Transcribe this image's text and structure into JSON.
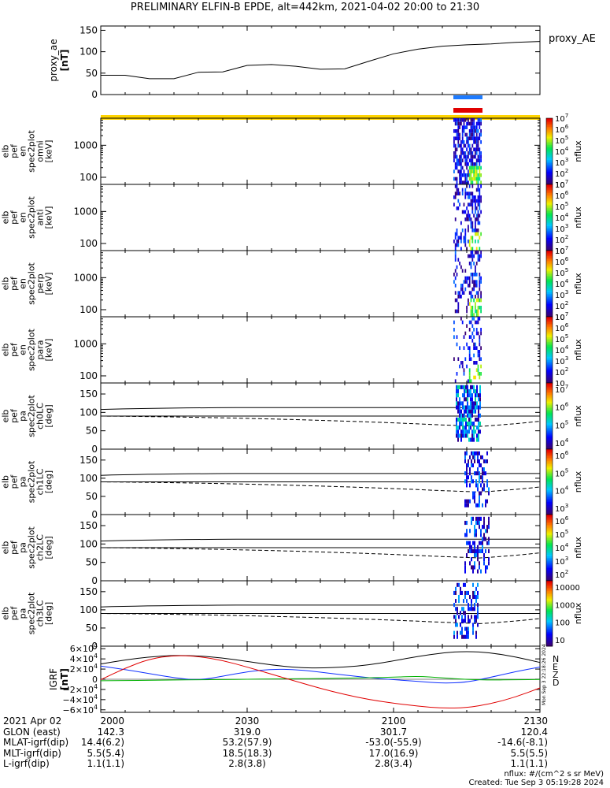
{
  "title": "PRELIMINARY ELFIN-B EPDE, alt=442km, 2021-04-02 20:00 to 21:30",
  "colors": {
    "ae_line": "#000000",
    "bar_blue": "#1e7bff",
    "bar_red": "#e00000",
    "bar_yellow": "#ffd400",
    "mag_n": "#000000",
    "mag_e": "#1030ff",
    "mag_z": "#00b000",
    "mag_d": "#e00000"
  },
  "chart_data": [
    {
      "type": "line",
      "name": "proxy_ae",
      "legend": "proxy_AE",
      "ylabel": "proxy_ae [nT]",
      "ylim": [
        0,
        160
      ],
      "yticks": [
        "0",
        "50",
        "100",
        "150"
      ],
      "x": [
        0,
        5,
        10,
        15,
        20,
        25,
        30,
        35,
        40,
        45,
        50,
        55,
        60,
        65,
        70,
        75,
        80,
        85,
        90
      ],
      "y": [
        45,
        45,
        37,
        37,
        52,
        53,
        68,
        70,
        66,
        59,
        60,
        78,
        95,
        106,
        113,
        116,
        118,
        122,
        124
      ]
    },
    {
      "type": "heatmap",
      "name": "omni",
      "ylabel": "elb pef en spec2plot omni [keV]",
      "yscale": "log",
      "ylim": [
        60,
        7000
      ],
      "yticks": [
        "100",
        "1000"
      ],
      "cblabel": "nflux",
      "cbticks": [
        "10",
        "10^2",
        "10^3",
        "10^4",
        "10^5",
        "10^6",
        "10^7"
      ]
    },
    {
      "type": "heatmap",
      "name": "anti",
      "ylabel": "elb pef en spec2plot anti [keV]",
      "yscale": "log",
      "ylim": [
        60,
        7000
      ],
      "yticks": [
        "100",
        "1000"
      ],
      "cblabel": "nflux",
      "cbticks": [
        "10",
        "10^2",
        "10^3",
        "10^4",
        "10^5",
        "10^6",
        "10^7"
      ]
    },
    {
      "type": "heatmap",
      "name": "perp",
      "ylabel": "elb pef en spec2plot perp [keV]",
      "yscale": "log",
      "ylim": [
        60,
        7000
      ],
      "yticks": [
        "100",
        "1000"
      ],
      "cblabel": "nflux",
      "cbticks": [
        "10",
        "10^2",
        "10^3",
        "10^4",
        "10^5",
        "10^6",
        "10^7"
      ]
    },
    {
      "type": "heatmap",
      "name": "para",
      "ylabel": "elb pef en spec2plot para [keV]",
      "yscale": "log",
      "ylim": [
        60,
        7000
      ],
      "yticks": [
        "100",
        "1000"
      ],
      "cblabel": "nflux",
      "cbticks": [
        "10",
        "10^2",
        "10^3",
        "10^4",
        "10^5",
        "10^6",
        "10^7"
      ]
    },
    {
      "type": "heatmap",
      "name": "ch0LC",
      "ylabel": "elb pef pa spec2plot ch0LC [deg]",
      "ylim": [
        0,
        180
      ],
      "yticks": [
        "0",
        "50",
        "100",
        "150"
      ],
      "cblabel": "nflux",
      "cbticks": [
        "10^4",
        "10^5",
        "10^6",
        "10^7"
      ]
    },
    {
      "type": "heatmap",
      "name": "ch1LC",
      "ylabel": "elb pef pa spec2plot ch1LC [deg]",
      "ylim": [
        0,
        180
      ],
      "yticks": [
        "0",
        "50",
        "100",
        "150"
      ],
      "cblabel": "nflux",
      "cbticks": [
        "10^3",
        "10^4",
        "10^5",
        "10^6"
      ]
    },
    {
      "type": "heatmap",
      "name": "ch2LC",
      "ylabel": "elb pef pa spec2plot ch2LC [deg]",
      "ylim": [
        0,
        180
      ],
      "yticks": [
        "0",
        "50",
        "100",
        "150"
      ],
      "cblabel": "nflux",
      "cbticks": [
        "10^2",
        "10^3",
        "10^4",
        "10^5",
        "10^6"
      ]
    },
    {
      "type": "heatmap",
      "name": "ch3LC",
      "ylabel": "elb pef pa spec2plot ch3LC [deg]",
      "ylim": [
        0,
        180
      ],
      "yticks": [
        "0",
        "50",
        "100",
        "150"
      ],
      "cblabel": "nflux",
      "cbticks": [
        "10",
        "100",
        "1000",
        "10000"
      ]
    },
    {
      "type": "line",
      "name": "IGRF",
      "ylabel": "IGRF [nT]",
      "ylim": [
        -65000,
        65000
      ],
      "yticks": [
        "−6×10^4",
        "−4×10^4",
        "−2×10^4",
        "0",
        "2×10^4",
        "4×10^4",
        "6×10^4"
      ],
      "series": [
        {
          "name": "N",
          "x": [
            0,
            5,
            10,
            15,
            20,
            25,
            30,
            35,
            40,
            45,
            50,
            55,
            60,
            65,
            70,
            75,
            80,
            85,
            90
          ],
          "y": [
            30000,
            38000,
            44000,
            47000,
            46000,
            42000,
            35000,
            28000,
            23000,
            22000,
            24000,
            28000,
            36000,
            45000,
            52000,
            55000,
            52000,
            44000,
            33000
          ]
        },
        {
          "name": "E",
          "x": [
            0,
            5,
            10,
            15,
            20,
            25,
            30,
            35,
            40,
            45,
            50,
            55,
            60,
            65,
            70,
            75,
            80,
            85,
            90
          ],
          "y": [
            26000,
            19000,
            11000,
            3000,
            -2000,
            6000,
            15000,
            20000,
            19000,
            14000,
            8000,
            3000,
            -1000,
            -4000,
            -8000,
            -6000,
            4000,
            15000,
            24000
          ]
        },
        {
          "name": "Z",
          "x": [
            0,
            5,
            10,
            15,
            20,
            25,
            30,
            35,
            40,
            45,
            50,
            55,
            60,
            65,
            70,
            75,
            80,
            85,
            90
          ],
          "y": [
            -3000,
            -2500,
            -2000,
            -1500,
            -1000,
            -500,
            0,
            500,
            1000,
            1500,
            2000,
            3000,
            4000,
            6000,
            3000,
            -500,
            -1500,
            -1000,
            -500
          ]
        },
        {
          "name": "D",
          "x": [
            0,
            5,
            10,
            15,
            20,
            25,
            30,
            35,
            40,
            45,
            50,
            55,
            60,
            65,
            70,
            75,
            80,
            85,
            90
          ],
          "y": [
            -1000,
            22000,
            40000,
            47000,
            45000,
            37000,
            24000,
            10000,
            -4000,
            -18000,
            -30000,
            -40000,
            -47000,
            -53000,
            -57000,
            -56000,
            -48000,
            -35000,
            -17000
          ]
        }
      ]
    }
  ],
  "mag_labels": [
    "N",
    "E",
    "Z",
    "D"
  ],
  "side_text": "Mon Sep  3 22:18:26 2024",
  "xaxis": {
    "times": [
      "2000",
      "2030",
      "2100",
      "2130"
    ],
    "rows": [
      {
        "label": "2021 Apr 02",
        "values": [
          "2000",
          "2030",
          "2100",
          "2130"
        ]
      },
      {
        "label": "GLON (east)",
        "values": [
          "142.3",
          "319.0",
          "301.7",
          "120.4"
        ]
      },
      {
        "label": "MLAT-igrf(dip)",
        "values": [
          "14.4(6.2)",
          "53.2(57.9)",
          "-53.0(-55.9)",
          "-14.6(-8.1)"
        ]
      },
      {
        "label": "MLT-igrf(dip)",
        "values": [
          "5.5(5.4)",
          "18.5(18.3)",
          "17.0(16.9)",
          "5.5(5.5)"
        ]
      },
      {
        "label": "L-igrf(dip)",
        "values": [
          "1.1(1.1)",
          "2.8(3.8)",
          "2.8(3.4)",
          "1.1(1.1)"
        ]
      }
    ]
  },
  "footer": {
    "units": "nflux: #/(cm^2 s sr MeV)",
    "created": "Created: Tue Sep  3 05:19:28 2024"
  }
}
